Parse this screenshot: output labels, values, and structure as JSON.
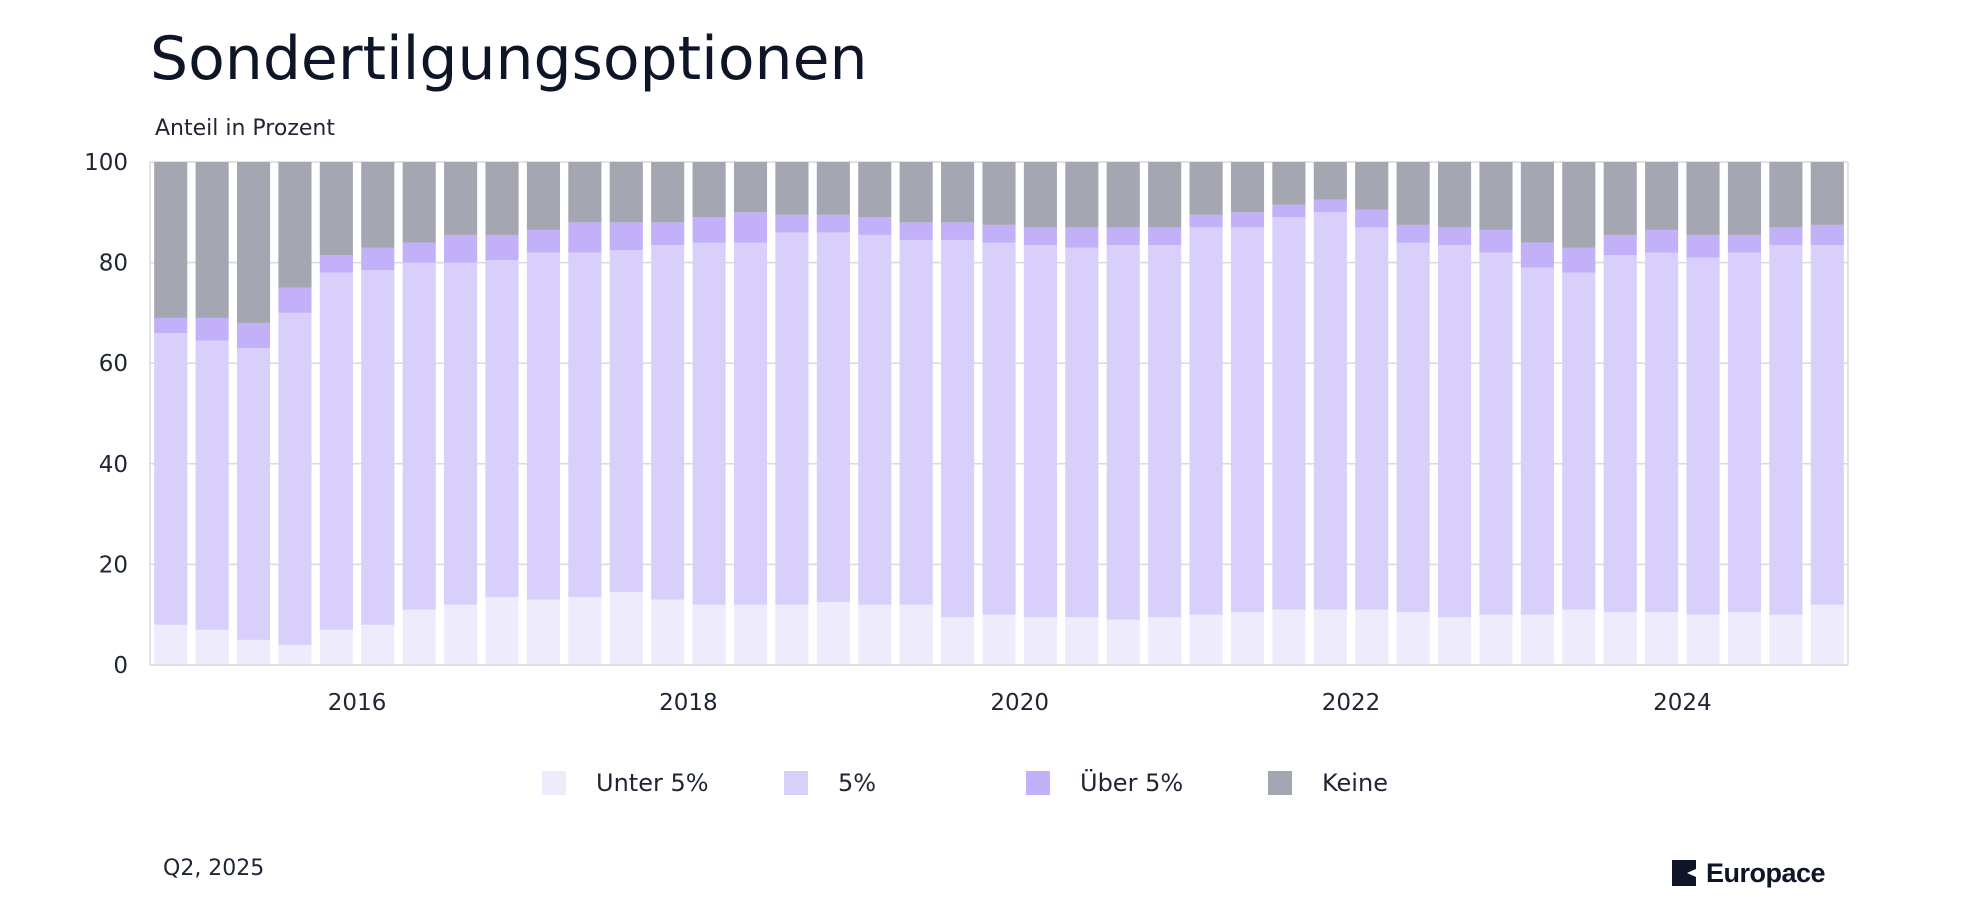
{
  "header": {
    "title": "Sondertilgungsoptionen",
    "subtitle": "Anteil in Prozent"
  },
  "footer": {
    "date": "Q2, 2025",
    "brand": "Europace"
  },
  "colors": {
    "unter5": "#eeebfd",
    "fuenf": "#d8cffb",
    "ueber5": "#c2b1f8",
    "keine": "#a4a6b2",
    "grid": "#d9d9e0",
    "axis_text": "#1f2533",
    "logo": "#0d1526"
  },
  "chart_data": {
    "type": "bar",
    "stacked": true,
    "x_ticks": [
      "2016",
      "2018",
      "2020",
      "2022",
      "2024"
    ],
    "y_ticks": [
      0,
      20,
      40,
      60,
      80,
      100
    ],
    "ylim": [
      0,
      100
    ],
    "grid": true,
    "legend_position": "bottom",
    "categories": [
      "Q4 2014",
      "Q1 2015",
      "Q2 2015",
      "Q3 2015",
      "Q4 2015",
      "Q1 2016",
      "Q2 2016",
      "Q3 2016",
      "Q4 2016",
      "Q1 2017",
      "Q2 2017",
      "Q3 2017",
      "Q4 2017",
      "Q1 2018",
      "Q2 2018",
      "Q3 2018",
      "Q4 2018",
      "Q1 2019",
      "Q2 2019",
      "Q3 2019",
      "Q4 2019",
      "Q1 2020",
      "Q2 2020",
      "Q3 2020",
      "Q4 2020",
      "Q1 2021",
      "Q2 2021",
      "Q3 2021",
      "Q4 2021",
      "Q1 2022",
      "Q2 2022",
      "Q3 2022",
      "Q4 2022",
      "Q1 2023",
      "Q2 2023",
      "Q3 2023",
      "Q4 2023",
      "Q1 2024",
      "Q2 2024",
      "Q3 2024",
      "Q4 2024"
    ],
    "series": [
      {
        "name": "Unter 5%",
        "color": "#eeebfd",
        "values": [
          8,
          7,
          5,
          4,
          7,
          8,
          11,
          12,
          13.5,
          13,
          13.5,
          14.5,
          13,
          12,
          12,
          12,
          12.5,
          12,
          12,
          9.5,
          10,
          9.5,
          9.5,
          9,
          9.5,
          10,
          10.5,
          11,
          11,
          11,
          10.5,
          9.5,
          10,
          10,
          11,
          10.5,
          10.5,
          10,
          10.5,
          10,
          12
        ]
      },
      {
        "name": "5%",
        "color": "#d8cffb",
        "values": [
          58,
          57.5,
          58,
          66,
          71,
          70.5,
          69,
          68,
          67,
          69,
          68.5,
          68,
          70.5,
          72,
          72,
          74,
          73.5,
          73.5,
          72.5,
          75,
          74,
          74,
          73.5,
          74.5,
          74,
          77,
          76.5,
          78,
          79,
          76,
          73.5,
          74,
          72,
          69,
          67,
          71,
          71.5,
          71,
          71.5,
          73.5,
          71.5
        ]
      },
      {
        "name": "Über 5%",
        "color": "#c2b1f8",
        "values": [
          3,
          4.5,
          5,
          5,
          3.5,
          4.5,
          4,
          5.5,
          5,
          4.5,
          6,
          5.5,
          4.5,
          5,
          6,
          3.5,
          3.5,
          3.5,
          3.5,
          3.5,
          3.5,
          3.5,
          4,
          3.5,
          3.5,
          2.5,
          3,
          2.5,
          2.5,
          3.5,
          3.5,
          3.5,
          4.5,
          5,
          5,
          4,
          4.5,
          4.5,
          3.5,
          3.5,
          4
        ]
      },
      {
        "name": "Keine",
        "color": "#a4a6b2",
        "values": [
          31,
          31,
          32,
          25,
          18.5,
          17,
          16,
          14.5,
          14.5,
          13.5,
          12,
          12,
          12,
          11,
          10,
          10.5,
          10.5,
          11,
          12,
          12,
          12.5,
          13,
          13,
          13,
          13,
          10.5,
          10,
          8.5,
          7.5,
          9.5,
          12.5,
          13,
          13.5,
          16,
          17,
          14.5,
          13.5,
          14.5,
          14.5,
          13,
          12.5
        ]
      }
    ]
  }
}
